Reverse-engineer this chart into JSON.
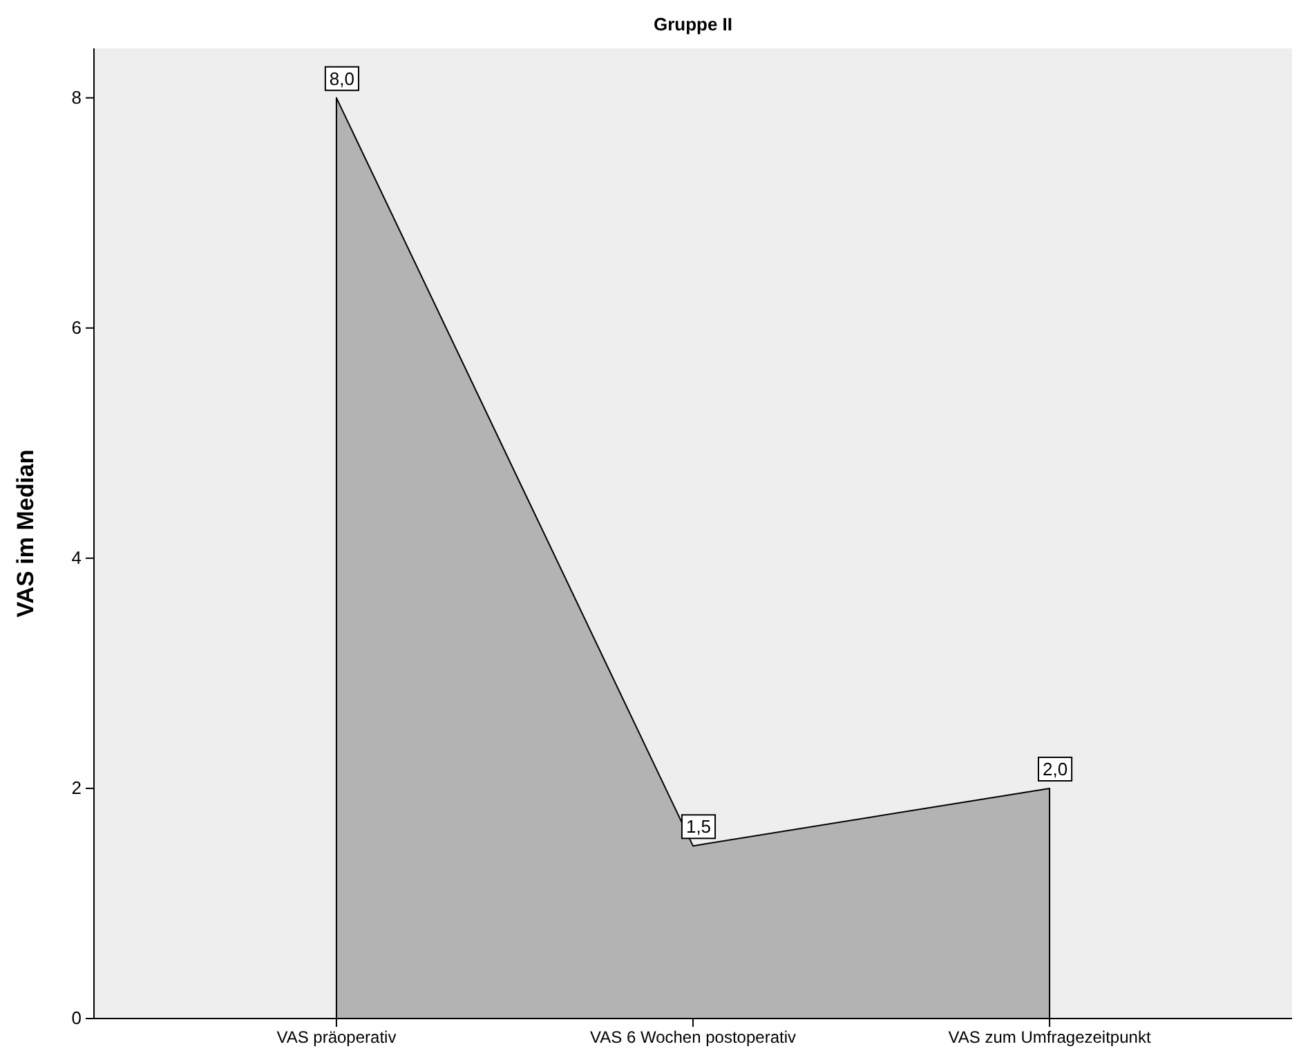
{
  "chart_data": {
    "type": "area",
    "title": "Gruppe II",
    "ylabel": "VAS im Median",
    "categories": [
      "VAS präoperativ",
      "VAS 6 Wochen postoperativ",
      "VAS zum Umfragezeitpunkt"
    ],
    "values": [
      8,
      1.5,
      2
    ],
    "value_labels": [
      "8,0",
      "1,5",
      "2,0"
    ],
    "color": "#b3b3b3",
    "ylim": [
      0,
      8.43
    ],
    "yticks": [
      0,
      2,
      4,
      6,
      8
    ],
    "grid": false
  }
}
